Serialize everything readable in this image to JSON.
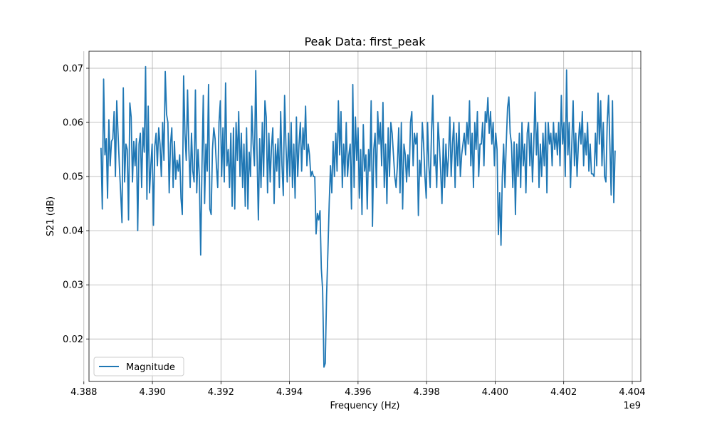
{
  "chart_data": {
    "type": "line",
    "title": "Peak Data: first_peak",
    "xlabel": "Frequency (Hz)",
    "ylabel": "S21 (dB)",
    "x_offset_text": "1e9",
    "xlim": [
      4.38815,
      4.40425
    ],
    "ylim": [
      0.01215,
      0.07315
    ],
    "xticks": [
      4.388,
      4.39,
      4.392,
      4.394,
      4.396,
      4.398,
      4.4,
      4.402,
      4.404
    ],
    "xtick_labels": [
      "4.388",
      "4.390",
      "4.392",
      "4.394",
      "4.396",
      "4.398",
      "4.400",
      "4.402",
      "4.404"
    ],
    "yticks": [
      0.02,
      0.03,
      0.04,
      0.05,
      0.06,
      0.07
    ],
    "ytick_labels": [
      "0.02",
      "0.03",
      "0.04",
      "0.05",
      "0.06",
      "0.07"
    ],
    "grid": true,
    "legend_position": "lower-left",
    "series": [
      {
        "name": "Magnitude",
        "color": "#1f77b4",
        "x_start": 4.3885,
        "x_end": 4.4035,
        "values": [
          0.0553,
          0.044,
          0.068,
          0.054,
          0.057,
          0.046,
          0.0605,
          0.052,
          0.0565,
          0.057,
          0.062,
          0.05,
          0.064,
          0.058,
          0.052,
          0.047,
          0.0415,
          0.0664,
          0.049,
          0.056,
          0.055,
          0.042,
          0.0636,
          0.061,
          0.049,
          0.0565,
          0.052,
          0.057,
          0.04,
          0.056,
          0.058,
          0.048,
          0.059,
          0.0545,
          0.0703,
          0.0458,
          0.063,
          0.047,
          0.052,
          0.056,
          0.041,
          0.0555,
          0.058,
          0.052,
          0.059,
          0.056,
          0.05,
          0.06,
          0.053,
          0.0694,
          0.0615,
          0.06,
          0.047,
          0.056,
          0.059,
          0.048,
          0.0565,
          0.0495,
          0.053,
          0.051,
          0.054,
          0.046,
          0.043,
          0.0686,
          0.058,
          0.053,
          0.066,
          0.055,
          0.048,
          0.058,
          0.051,
          0.049,
          0.066,
          0.047,
          0.055,
          0.05,
          0.0355,
          0.052,
          0.065,
          0.045,
          0.056,
          0.051,
          0.067,
          0.044,
          0.043,
          0.055,
          0.059,
          0.057,
          0.052,
          0.048,
          0.06,
          0.064,
          0.05,
          0.059,
          0.049,
          0.0673,
          0.052,
          0.055,
          0.048,
          0.058,
          0.0445,
          0.059,
          0.044,
          0.06,
          0.053,
          0.062,
          0.05,
          0.058,
          0.048,
          0.056,
          0.0445,
          0.059,
          0.044,
          0.0545,
          0.05,
          0.063,
          0.056,
          0.052,
          0.0696,
          0.054,
          0.042,
          0.057,
          0.048,
          0.06,
          0.05,
          0.064,
          0.061,
          0.047,
          0.058,
          0.049,
          0.0555,
          0.059,
          0.045,
          0.056,
          0.051,
          0.057,
          0.048,
          0.062,
          0.052,
          0.0465,
          0.065,
          0.056,
          0.049,
          0.058,
          0.05,
          0.06,
          0.048,
          0.056,
          0.046,
          0.061,
          0.05,
          0.056,
          0.06,
          0.051,
          0.059,
          0.055,
          0.063,
          0.052,
          0.056,
          0.054,
          0.05,
          0.051,
          0.05,
          0.05,
          0.0394,
          0.0432,
          0.042,
          0.0437,
          0.033,
          0.029,
          0.0148,
          0.0155,
          0.028,
          0.036,
          0.045,
          0.052,
          0.047,
          0.0565,
          0.05,
          0.058,
          0.051,
          0.064,
          0.054,
          0.062,
          0.048,
          0.056,
          0.05,
          0.06,
          0.05,
          0.054,
          0.056,
          0.044,
          0.067,
          0.048,
          0.061,
          0.053,
          0.059,
          0.046,
          0.055,
          0.043,
          0.0596,
          0.051,
          0.054,
          0.044,
          0.055,
          0.051,
          0.064,
          0.0408,
          0.055,
          0.058,
          0.048,
          0.062,
          0.056,
          0.06,
          0.052,
          0.0637,
          0.048,
          0.056,
          0.045,
          0.059,
          0.05,
          0.06,
          0.058,
          0.054,
          0.05,
          0.048,
          0.052,
          0.059,
          0.047,
          0.06,
          0.044,
          0.056,
          0.054,
          0.049,
          0.054,
          0.05,
          0.06,
          0.062,
          0.052,
          0.058,
          0.056,
          0.058,
          0.0428,
          0.053,
          0.05,
          0.06,
          0.056,
          0.05,
          0.046,
          0.06,
          0.052,
          0.048,
          0.058,
          0.065,
          0.052,
          0.054,
          0.048,
          0.06,
          0.056,
          0.051,
          0.045,
          0.057,
          0.048,
          0.056,
          0.05,
          0.054,
          0.061,
          0.05,
          0.056,
          0.06,
          0.048,
          0.058,
          0.052,
          0.06,
          0.05,
          0.054,
          0.056,
          0.058,
          0.054,
          0.06,
          0.056,
          0.064,
          0.052,
          0.058,
          0.048,
          0.06,
          0.055,
          0.062,
          0.05,
          0.056,
          0.056,
          0.06,
          0.052,
          0.062,
          0.06,
          0.0646,
          0.058,
          0.062,
          0.056,
          0.06,
          0.052,
          0.058,
          0.055,
          0.0393,
          0.047,
          0.0373,
          0.05,
          0.056,
          0.048,
          0.056,
          0.0627,
          0.0647,
          0.058,
          0.056,
          0.048,
          0.0564,
          0.043,
          0.056,
          0.05,
          0.058,
          0.048,
          0.06,
          0.052,
          0.056,
          0.047,
          0.058,
          0.06,
          0.052,
          0.058,
          0.049,
          0.056,
          0.0656,
          0.054,
          0.06,
          0.048,
          0.056,
          0.05,
          0.058,
          0.052,
          0.06,
          0.047,
          0.06,
          0.056,
          0.058,
          0.052,
          0.06,
          0.055,
          0.058,
          0.054,
          0.06,
          0.052,
          0.065,
          0.056,
          0.06,
          0.05,
          0.0697,
          0.054,
          0.06,
          0.048,
          0.056,
          0.064,
          0.052,
          0.058,
          0.05,
          0.056,
          0.06,
          0.056,
          0.062,
          0.052,
          0.058,
          0.054,
          0.06,
          0.051,
          0.056,
          0.0505,
          0.0505,
          0.05,
          0.058,
          0.052,
          0.0654,
          0.056,
          0.064,
          0.052,
          0.06,
          0.05,
          0.049,
          0.06,
          0.065,
          0.056,
          0.0466,
          0.064,
          0.0452,
          0.0548
        ]
      }
    ]
  }
}
